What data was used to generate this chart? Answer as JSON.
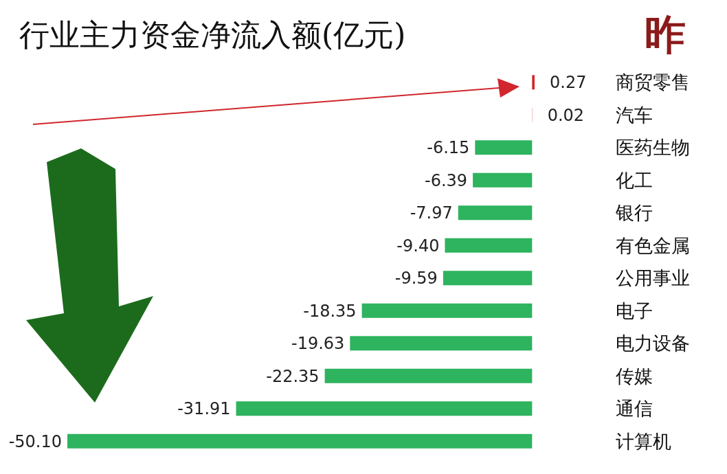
{
  "chart_data": {
    "type": "bar",
    "orientation": "horizontal",
    "title": "行业主力资金净流入额(亿元)",
    "annotations": [
      "昨"
    ],
    "categories": [
      "商贸零售",
      "汽车",
      "医药生物",
      "化工",
      "银行",
      "有色金属",
      "公用事业",
      "电子",
      "电力设备",
      "传媒",
      "通信",
      "计算机"
    ],
    "values": [
      0.27,
      0.02,
      -6.15,
      -6.39,
      -7.97,
      -9.4,
      -9.59,
      -18.35,
      -19.63,
      -22.35,
      -31.91,
      -50.1
    ],
    "value_labels": [
      "0.27",
      "0.02",
      "-6.15",
      "-6.39",
      "-7.97",
      "-9.40",
      "-9.59",
      "-18.35",
      "-19.63",
      "-22.35",
      "-31.91",
      "-50.10"
    ],
    "colors": [
      "#d0262c",
      "#d0262c",
      "#2eb35e",
      "#2eb35e",
      "#2eb35e",
      "#2eb35e",
      "#2eb35e",
      "#2eb35e",
      "#2eb35e",
      "#2eb35e",
      "#2eb35e",
      "#2eb35e"
    ]
  }
}
